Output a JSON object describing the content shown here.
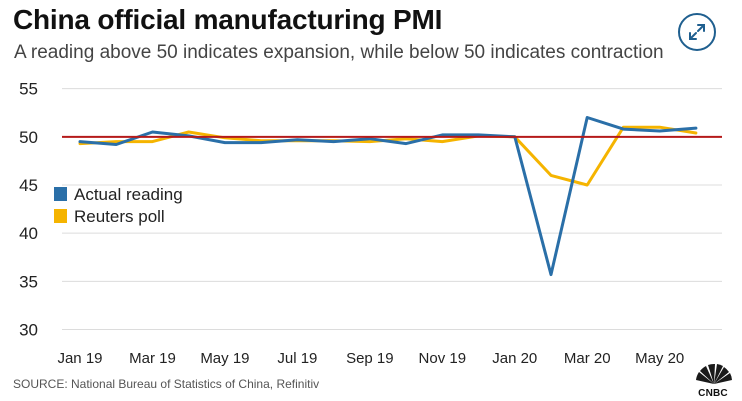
{
  "header": {
    "title": "China official manufacturing PMI",
    "subtitle": "A reading above 50 indicates expansion, while below 50 indicates contraction"
  },
  "icons": {
    "expand": "expand-arrows-icon",
    "logo": "cnbc-peacock-logo"
  },
  "logo": {
    "text": "CNBC"
  },
  "footer": {
    "source": "SOURCE: National Bureau of Statistics of China, Refinitiv"
  },
  "colors": {
    "actual": "#2a6fa8",
    "poll": "#f5b400",
    "reference_line": "#b51a1a",
    "grid": "#dcdcdc",
    "accent": "#1f5f8f"
  },
  "chart_data": {
    "type": "line",
    "title": "China official manufacturing PMI",
    "subtitle": "A reading above 50 indicates expansion, while below 50 indicates contraction",
    "x": [
      "Jan 19",
      "Feb 19",
      "Mar 19",
      "Apr 19",
      "May 19",
      "Jun 19",
      "Jul 19",
      "Aug 19",
      "Sep 19",
      "Oct 19",
      "Nov 19",
      "Dec 19",
      "Jan 20",
      "Feb 20",
      "Mar 20",
      "Apr 20",
      "May 20",
      "Jun 20"
    ],
    "xticks": [
      "Jan 19",
      "Mar 19",
      "May 19",
      "Jul 19",
      "Sep 19",
      "Nov 19",
      "Jan 20",
      "Mar 20",
      "May 20"
    ],
    "yticks": [
      30,
      35,
      40,
      45,
      50,
      55
    ],
    "ylim": [
      28.5,
      56
    ],
    "reference_line": 50,
    "grid": true,
    "legend_position": "left",
    "series": [
      {
        "name": "Actual reading",
        "color": "#2a6fa8",
        "values": [
          49.5,
          49.2,
          50.5,
          50.1,
          49.4,
          49.4,
          49.7,
          49.5,
          49.8,
          49.3,
          50.2,
          50.2,
          50.0,
          35.7,
          52.0,
          50.8,
          50.6,
          50.9
        ]
      },
      {
        "name": "Reuters poll",
        "color": "#f5b400",
        "values": [
          49.3,
          49.5,
          49.5,
          50.5,
          49.9,
          49.6,
          49.6,
          49.6,
          49.5,
          49.8,
          49.5,
          50.1,
          50.0,
          46.0,
          45.0,
          51.0,
          51.0,
          50.4
        ]
      }
    ]
  }
}
